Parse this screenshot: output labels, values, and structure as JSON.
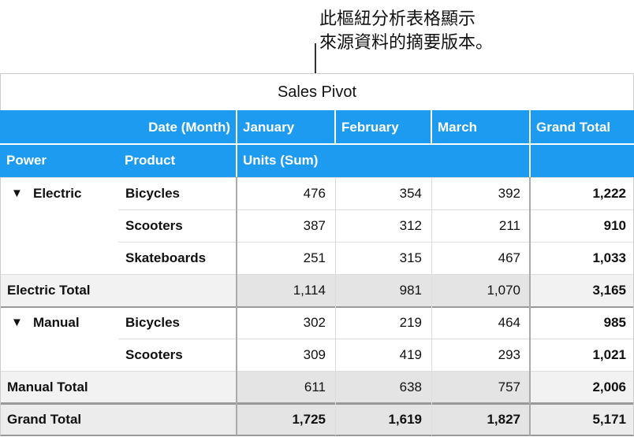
{
  "annotation": [
    "此樞紐分析表格顯示",
    "來源資料的摘要版本。"
  ],
  "table": {
    "title": "Sales Pivot",
    "column_header": {
      "label": "Date (Month)",
      "months": [
        "January",
        "February",
        "March"
      ],
      "grand_total": "Grand Total"
    },
    "row_header": {
      "power": "Power",
      "product": "Product",
      "measure": "Units (Sum)"
    },
    "rows": [
      {
        "group": "Electric",
        "product": "Bicycles",
        "values": [
          "476",
          "354",
          "392"
        ],
        "total": "1,222"
      },
      {
        "product": "Scooters",
        "values": [
          "387",
          "312",
          "211"
        ],
        "total": "910"
      },
      {
        "product": "Skateboards",
        "values": [
          "251",
          "315",
          "467"
        ],
        "total": "1,033"
      },
      {
        "label": "Electric Total",
        "values": [
          "1,114",
          "981",
          "1,070"
        ],
        "total": "3,165"
      },
      {
        "group": "Manual",
        "product": "Bicycles",
        "values": [
          "302",
          "219",
          "464"
        ],
        "total": "985"
      },
      {
        "product": "Scooters",
        "values": [
          "309",
          "419",
          "293"
        ],
        "total": "1,021"
      },
      {
        "label": "Manual Total",
        "values": [
          "611",
          "638",
          "757"
        ],
        "total": "2,006"
      },
      {
        "label": "Grand Total",
        "grand": true,
        "values": [
          "1,725",
          "1,619",
          "1,827"
        ],
        "total": "5,171"
      }
    ]
  }
}
